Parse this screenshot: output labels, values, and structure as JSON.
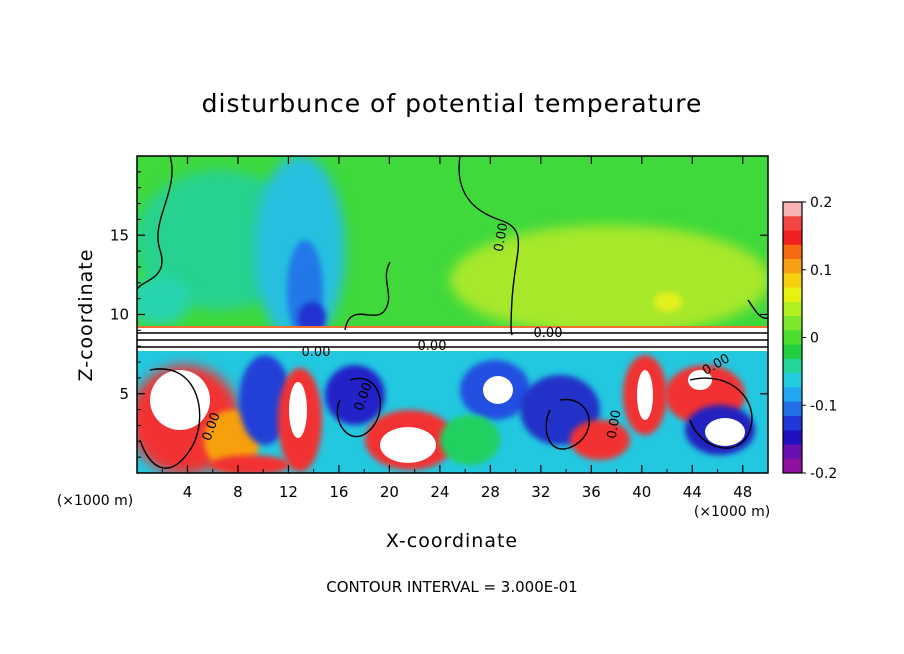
{
  "chart_data": {
    "type": "heatmap",
    "title": "disturbunce of potential temperature",
    "xlabel": "X-coordinate",
    "ylabel": "Z-coordinate",
    "x_unit_left": "(×1000 m)",
    "x_unit_right": "(×1000 m)",
    "xlim": [
      0,
      50
    ],
    "ylim": [
      0,
      20
    ],
    "x_ticks": [
      "4",
      "8",
      "12",
      "16",
      "20",
      "24",
      "28",
      "32",
      "36",
      "40",
      "44",
      "48"
    ],
    "y_ticks": [
      "5",
      "10",
      "15"
    ],
    "colorbar": {
      "range": [
        -0.2,
        0.2
      ],
      "tick_labels": [
        "0.2",
        "0.1",
        "0",
        "-0.1",
        "-0.2"
      ],
      "colors": [
        "#f7b3b3",
        "#f44545",
        "#f22020",
        "#f36a10",
        "#f7a011",
        "#f7d010",
        "#e7f210",
        "#b2f020",
        "#7de82b",
        "#4adf2f",
        "#20d040",
        "#22d69a",
        "#22cde2",
        "#21a7ef",
        "#2170e8",
        "#2138d8",
        "#2010c0",
        "#6a10b0",
        "#9010a0"
      ]
    },
    "contour_labels": [
      "0.00",
      "0.00",
      "0.00",
      "0.00",
      "0.00",
      "0.00",
      "0.00",
      "0.00"
    ],
    "footer": "CONTOUR INTERVAL = 3.000E-01"
  }
}
